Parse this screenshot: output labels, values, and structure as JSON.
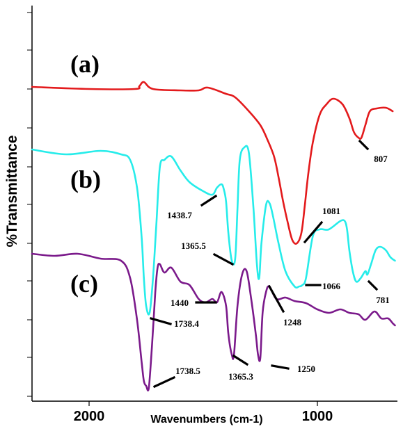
{
  "chart_data": {
    "type": "line",
    "title": "",
    "xlabel": "Wavenumbers (cm-1)",
    "ylabel": "%Transmittance",
    "x_ticks": [
      2000,
      1000
    ],
    "x_reversed": true,
    "xlim": [
      2250,
      650
    ],
    "grid": false,
    "legend": "none",
    "panel_labels": [
      "(a)",
      "(b)",
      "(c)"
    ],
    "series": [
      {
        "color": "#e31a1c",
        "x": [
          2250,
          2000,
          1800,
          1780,
          1760,
          1720,
          1600,
          1520,
          1480,
          1400,
          1360,
          1300,
          1250,
          1220,
          1190,
          1170,
          1150,
          1130,
          1110,
          1090,
          1070,
          1055,
          1040,
          1020,
          990,
          960,
          930,
          890,
          860,
          840,
          820,
          807,
          790,
          770,
          740,
          700,
          670
        ],
        "y": [
          125,
          128,
          128,
          124,
          118,
          128,
          130,
          130,
          126,
          135,
          140,
          160,
          180,
          200,
          225,
          255,
          290,
          320,
          345,
          350,
          335,
          295,
          250,
          205,
          165,
          150,
          142,
          150,
          170,
          190,
          198,
          198,
          180,
          160,
          156,
          155,
          160
        ],
        "labels": [
          {
            "text": "807",
            "x": 807
          }
        ]
      },
      {
        "color": "#26ecea",
        "x": [
          2250,
          2100,
          1950,
          1860,
          1820,
          1790,
          1770,
          1760,
          1750,
          1735,
          1720,
          1705,
          1690,
          1670,
          1640,
          1600,
          1560,
          1500,
          1460,
          1440,
          1420,
          1410,
          1400,
          1390,
          1375,
          1360,
          1350,
          1340,
          1320,
          1300,
          1280,
          1265,
          1255,
          1245,
          1225,
          1210,
          1195,
          1170,
          1140,
          1100,
          1080,
          1066,
          1050,
          1020,
          990,
          950,
          900,
          880,
          870,
          860,
          845,
          830,
          810,
          790,
          781,
          765,
          745,
          725,
          700,
          680,
          660
        ],
        "y": [
          215,
          222,
          217,
          222,
          230,
          270,
          340,
          400,
          440,
          450,
          400,
          320,
          240,
          230,
          225,
          245,
          262,
          275,
          280,
          270,
          265,
          272,
          290,
          335,
          375,
          372,
          300,
          230,
          212,
          220,
          300,
          380,
          400,
          350,
          295,
          292,
          310,
          350,
          390,
          412,
          412,
          410,
          400,
          340,
          330,
          330,
          318,
          318,
          330,
          360,
          390,
          405,
          400,
          390,
          395,
          380,
          360,
          355,
          360,
          370,
          375
        ],
        "labels": [
          {
            "text": "1438.7",
            "x": 1438.7
          },
          {
            "text": "1365.5",
            "x": 1365.5
          },
          {
            "text": "1248",
            "x": 1248
          },
          {
            "text": "1081",
            "x": 1081
          },
          {
            "text": "1066",
            "x": 1066
          },
          {
            "text": "781",
            "x": 781
          }
        ]
      },
      {
        "color": "#7b1a8b",
        "x": [
          2250,
          2150,
          2050,
          1950,
          1860,
          1820,
          1790,
          1770,
          1760,
          1750,
          1738.5,
          1725,
          1710,
          1700,
          1690,
          1670,
          1640,
          1600,
          1560,
          1520,
          1490,
          1460,
          1440,
          1420,
          1400,
          1390,
          1375,
          1365.3,
          1350,
          1330,
          1310,
          1290,
          1270,
          1260,
          1250,
          1240,
          1225,
          1210,
          1180,
          1140,
          1100,
          1050,
          1000,
          950,
          900,
          860,
          820,
          790,
          750,
          720,
          690,
          670,
          660
        ],
        "y": [
          365,
          368,
          365,
          372,
          375,
          400,
          460,
          520,
          548,
          555,
          558,
          500,
          420,
          385,
          380,
          392,
          385,
          405,
          410,
          430,
          435,
          430,
          435,
          420,
          440,
          480,
          510,
          510,
          440,
          395,
          390,
          430,
          480,
          510,
          515,
          450,
          420,
          412,
          430,
          428,
          433,
          436,
          445,
          450,
          445,
          450,
          452,
          460,
          448,
          458,
          458,
          465,
          468
        ],
        "labels": [
          {
            "text": "1440",
            "x": 1440
          },
          {
            "text": "1738.4",
            "x": 1738.4
          },
          {
            "text": "1738.5",
            "x": 1738.5
          },
          {
            "text": "1365.3",
            "x": 1365.3
          },
          {
            "text": "1250",
            "x": 1250
          }
        ]
      }
    ]
  }
}
